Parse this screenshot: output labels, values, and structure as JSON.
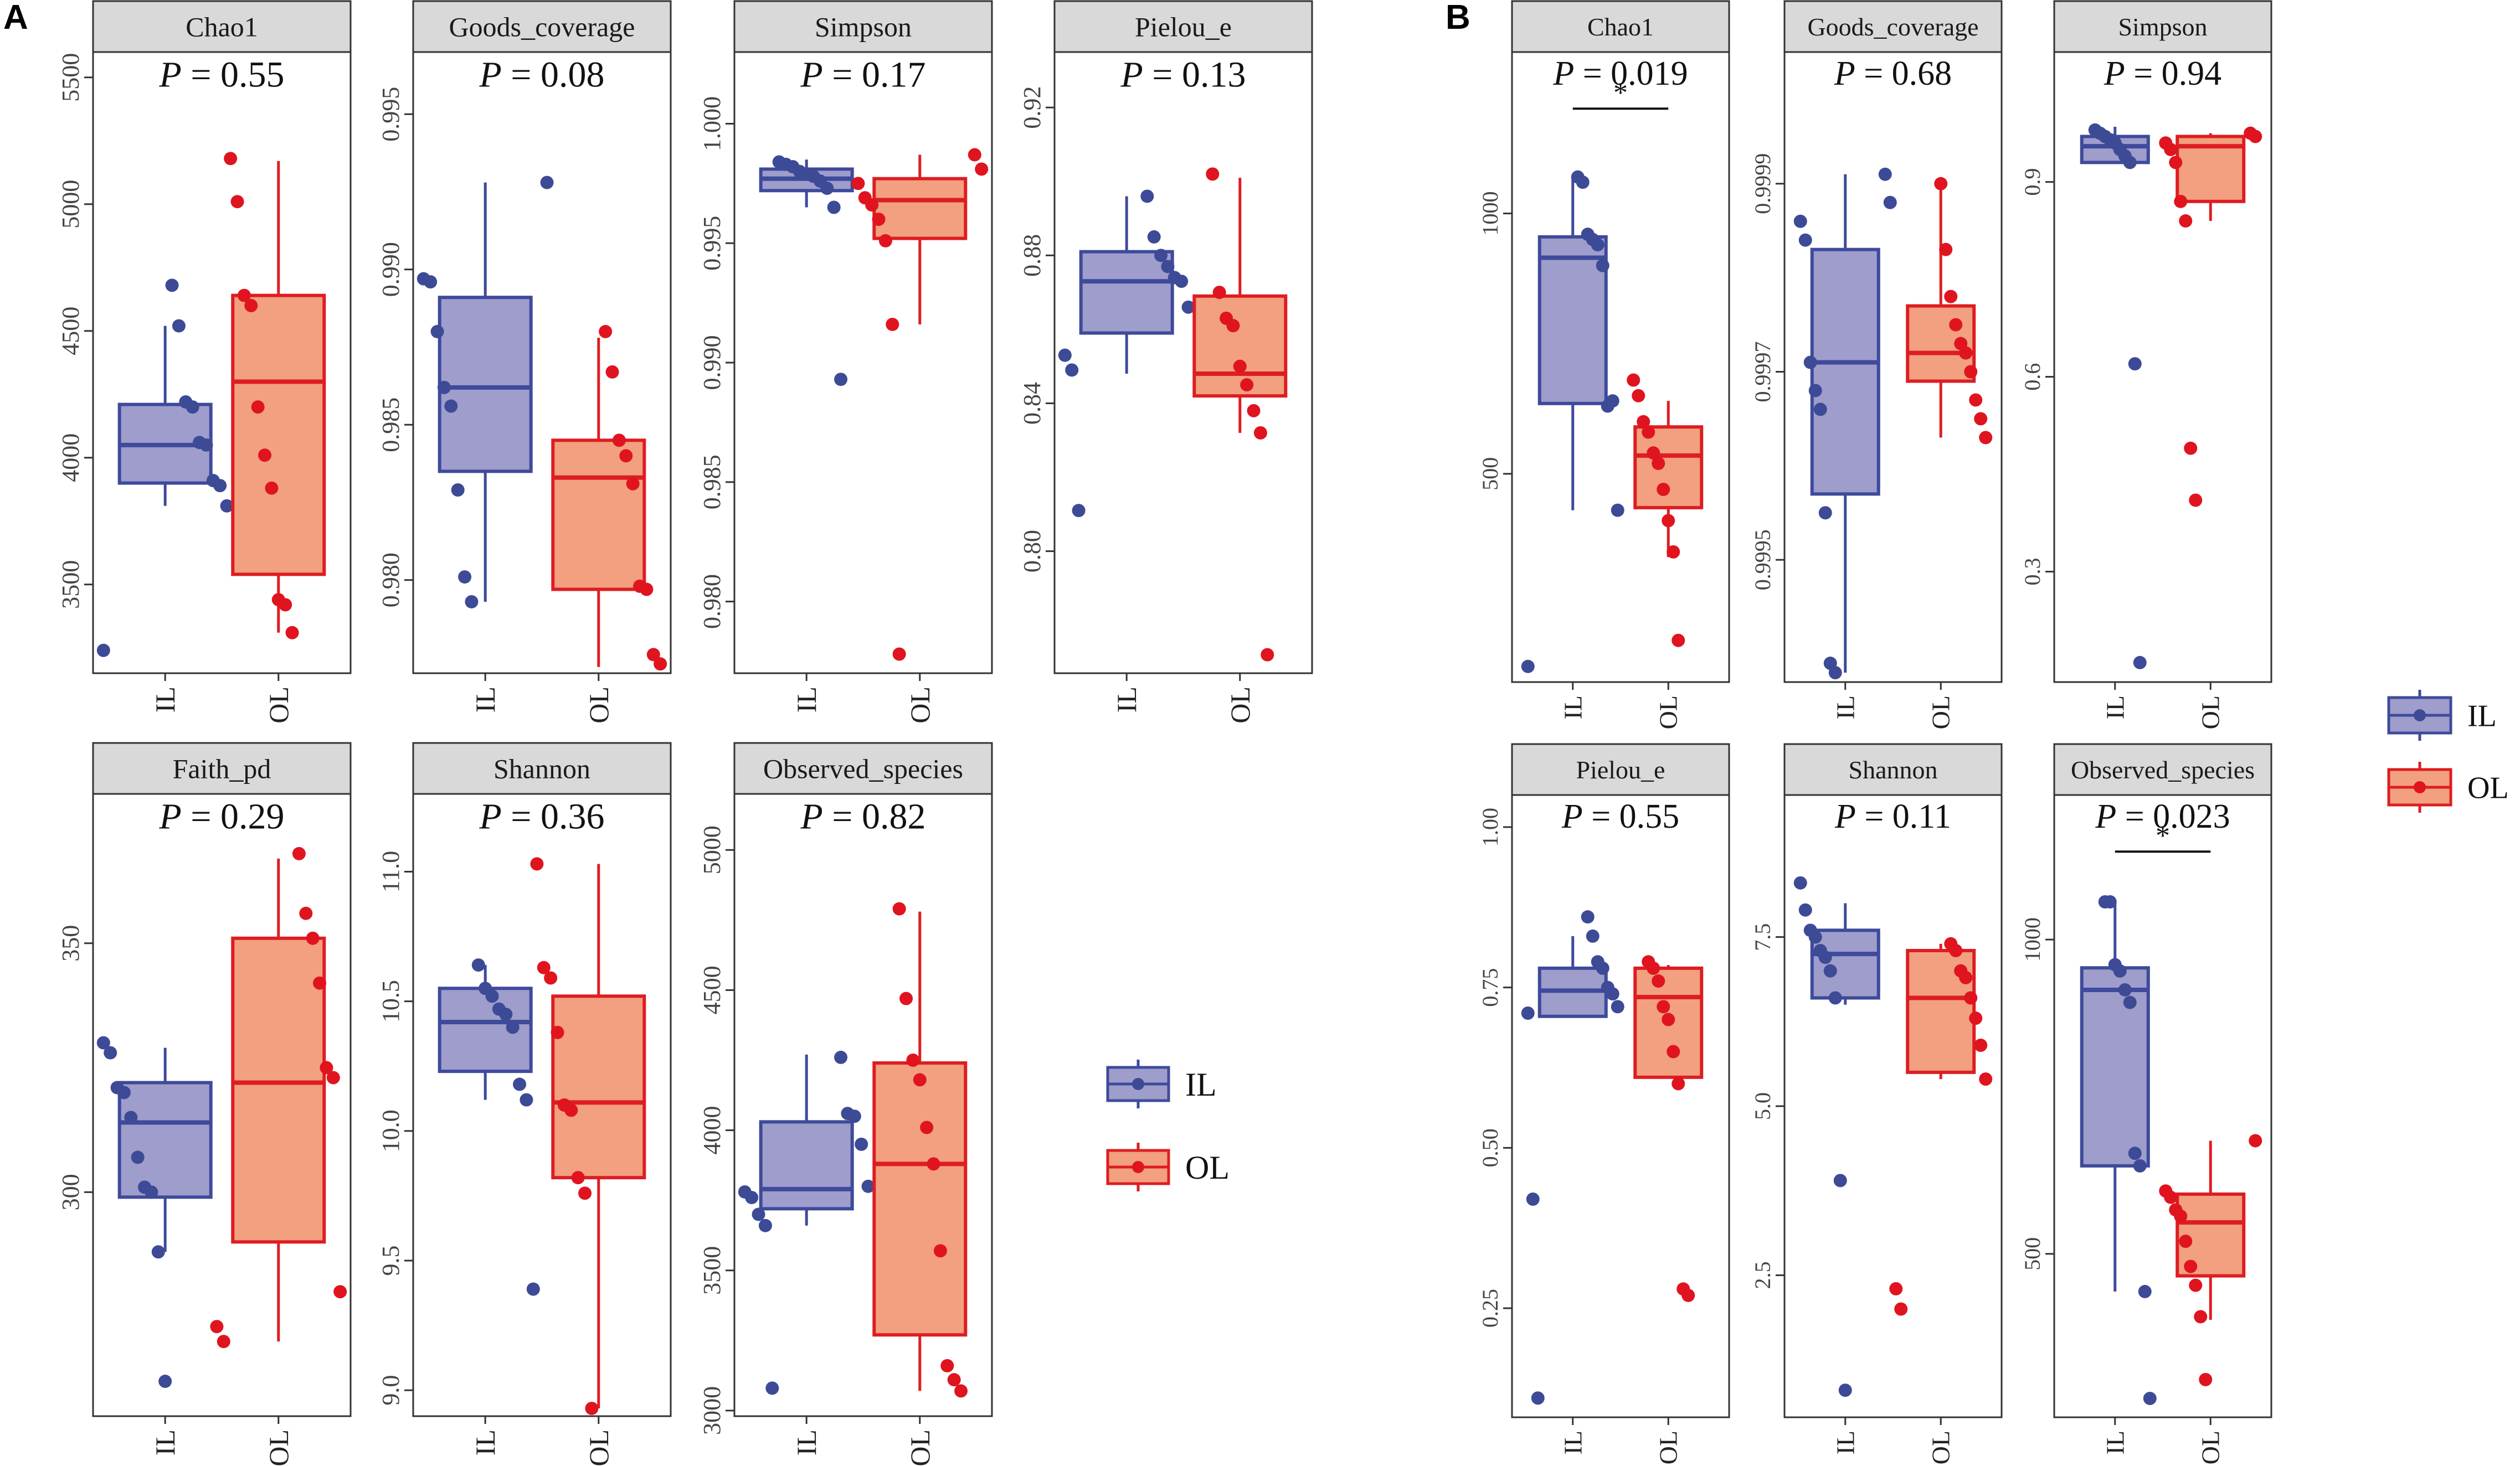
{
  "colors": {
    "il_line": "#3E4A9B",
    "il_fill": "#9E9DCB",
    "il_point": "#3D4A96",
    "ol_line": "#DE1D22",
    "ol_fill": "#F2A07F",
    "ol_point": "#E0141F",
    "strip_bg": "#D9D9D9",
    "frame": "#333333"
  },
  "legend": {
    "items": [
      {
        "label": "IL",
        "group": "IL"
      },
      {
        "label": "OL",
        "group": "OL"
      }
    ]
  },
  "chart_data": [
    {
      "panel": "A",
      "type": "box",
      "facets": [
        {
          "title": "Chao1",
          "p_value": "0.55",
          "yticks": [
            "3500",
            "4000",
            "4500",
            "5000",
            "5500"
          ],
          "ylim": [
            3150,
            5600
          ],
          "groups": [
            {
              "name": "IL",
              "q1": 3900,
              "median": 4050,
              "q3": 4210,
              "wlo": 3810,
              "whi": 4520,
              "points": [
                3240,
                3810,
                3890,
                3910,
                4050,
                4060,
                4200,
                4220,
                4520,
                4680
              ]
            },
            {
              "name": "OL",
              "q1": 3540,
              "median": 4300,
              "q3": 4640,
              "wlo": 3310,
              "whi": 5170,
              "points": [
                3310,
                3420,
                3440,
                3880,
                4010,
                4200,
                4600,
                4640,
                5010,
                5180
              ]
            }
          ]
        },
        {
          "title": "Goods_coverage",
          "p_value": "0.08",
          "yticks": [
            "0.980",
            "0.985",
            "0.990",
            "0.995"
          ],
          "ylim": [
            0.977,
            0.997
          ],
          "groups": [
            {
              "name": "IL",
              "q1": 0.9835,
              "median": 0.9862,
              "q3": 0.9891,
              "wlo": 0.9793,
              "whi": 0.9928,
              "points": [
                0.9793,
                0.9801,
                0.9829,
                0.9856,
                0.9862,
                0.988,
                0.9896,
                0.9897,
                0.9928
              ]
            },
            {
              "name": "OL",
              "q1": 0.9797,
              "median": 0.9833,
              "q3": 0.9845,
              "wlo": 0.9772,
              "whi": 0.9878,
              "points": [
                0.9773,
                0.9776,
                0.9797,
                0.9798,
                0.9831,
                0.984,
                0.9845,
                0.9867,
                0.988
              ]
            }
          ]
        },
        {
          "title": "Simpson",
          "p_value": "0.17",
          "yticks": [
            "0.980",
            "0.985",
            "0.990",
            "0.995",
            "1.000"
          ],
          "ylim": [
            0.977,
            1.003
          ],
          "groups": [
            {
              "name": "IL",
              "q1": 0.9972,
              "median": 0.9977,
              "q3": 0.9981,
              "wlo": 0.9965,
              "whi": 0.9985,
              "points": [
                0.9893,
                0.9965,
                0.9973,
                0.9976,
                0.9978,
                0.9979,
                0.998,
                0.9982,
                0.9983,
                0.9984
              ]
            },
            {
              "name": "OL",
              "q1": 0.9952,
              "median": 0.9968,
              "q3": 0.9977,
              "wlo": 0.9916,
              "whi": 0.9987,
              "points": [
                0.9778,
                0.9916,
                0.9951,
                0.996,
                0.9966,
                0.9969,
                0.9975,
                0.9981,
                0.9987
              ]
            }
          ]
        },
        {
          "title": "Pielou_e",
          "p_value": "0.13",
          "yticks": [
            "0.80",
            "0.84",
            "0.88",
            "0.92"
          ],
          "ylim": [
            0.767,
            0.935
          ],
          "groups": [
            {
              "name": "IL",
              "q1": 0.859,
              "median": 0.873,
              "q3": 0.881,
              "wlo": 0.848,
              "whi": 0.896,
              "points": [
                0.811,
                0.849,
                0.853,
                0.866,
                0.873,
                0.874,
                0.877,
                0.88,
                0.885,
                0.896
              ]
            },
            {
              "name": "OL",
              "q1": 0.842,
              "median": 0.848,
              "q3": 0.869,
              "wlo": 0.832,
              "whi": 0.901,
              "points": [
                0.772,
                0.832,
                0.838,
                0.845,
                0.85,
                0.861,
                0.863,
                0.87,
                0.902
              ]
            }
          ]
        },
        {
          "title": "Faith_pd",
          "p_value": "0.29",
          "yticks": [
            "300",
            "350"
          ],
          "ylim": [
            255,
            380
          ],
          "groups": [
            {
              "name": "IL",
              "q1": 299,
              "median": 314,
              "q3": 322,
              "wlo": 288,
              "whi": 329,
              "points": [
                262,
                288,
                300,
                301,
                307,
                315,
                320,
                321,
                328,
                330
              ]
            },
            {
              "name": "OL",
              "q1": 290,
              "median": 322,
              "q3": 351,
              "wlo": 270,
              "whi": 367,
              "points": [
                270,
                273,
                280,
                323,
                325,
                342,
                351,
                356,
                368
              ]
            }
          ]
        },
        {
          "title": "Shannon",
          "p_value": "0.36",
          "yticks": [
            "9.0",
            "9.5",
            "10.0",
            "10.5",
            "11.0"
          ],
          "ylim": [
            8.9,
            11.3
          ],
          "groups": [
            {
              "name": "IL",
              "q1": 10.23,
              "median": 10.42,
              "q3": 10.55,
              "wlo": 10.12,
              "whi": 10.64,
              "points": [
                9.39,
                10.12,
                10.18,
                10.4,
                10.45,
                10.47,
                10.52,
                10.55,
                10.64
              ]
            },
            {
              "name": "OL",
              "q1": 9.82,
              "median": 10.11,
              "q3": 10.52,
              "wlo": 8.93,
              "whi": 11.03,
              "points": [
                8.93,
                9.76,
                9.82,
                10.08,
                10.1,
                10.38,
                10.59,
                10.63,
                11.03
              ]
            }
          ]
        },
        {
          "title": "Observed_species",
          "p_value": "0.82",
          "yticks": [
            "3000",
            "3500",
            "4000",
            "4500",
            "5000"
          ],
          "ylim": [
            2980,
            5200
          ],
          "groups": [
            {
              "name": "IL",
              "q1": 3720,
              "median": 3790,
              "q3": 4030,
              "wlo": 3660,
              "whi": 4270,
              "points": [
                3080,
                3660,
                3700,
                3760,
                3780,
                3800,
                3950,
                4050,
                4060,
                4260
              ]
            },
            {
              "name": "OL",
              "q1": 3270,
              "median": 3880,
              "q3": 4240,
              "wlo": 3070,
              "whi": 4780,
              "points": [
                3070,
                3110,
                3160,
                3570,
                3880,
                4010,
                4180,
                4250,
                4470,
                4790
              ]
            }
          ]
        }
      ]
    },
    {
      "panel": "B",
      "type": "box",
      "facets": [
        {
          "title": "Chao1",
          "p_value": "0.019",
          "significance": "*",
          "yticks": [
            "500",
            "1000"
          ],
          "ylim": [
            100,
            1310
          ],
          "groups": [
            {
              "name": "IL",
              "q1": 635,
              "median": 915,
              "q3": 955,
              "wlo": 430,
              "whi": 1070,
              "points": [
                130,
                430,
                640,
                630,
                900,
                940,
                950,
                960,
                1060,
                1070
              ]
            },
            {
              "name": "OL",
              "q1": 435,
              "median": 535,
              "q3": 590,
              "wlo": 340,
              "whi": 640,
              "points": [
                180,
                350,
                410,
                470,
                520,
                540,
                580,
                600,
                650,
                680
              ]
            }
          ]
        },
        {
          "title": "Goods_coverage",
          "p_value": "0.68",
          "yticks": [
            "0.9995",
            "0.9997",
            "0.9999"
          ],
          "ylim": [
            0.99937,
            1.00004
          ],
          "groups": [
            {
              "name": "IL",
              "q1": 0.99957,
              "median": 0.99971,
              "q3": 0.99983,
              "wlo": 0.99938,
              "whi": 0.99991,
              "points": [
                0.99938,
                0.99939,
                0.99955,
                0.99966,
                0.99968,
                0.99971,
                0.99984,
                0.99986,
                0.99988,
                0.99991
              ]
            },
            {
              "name": "OL",
              "q1": 0.99969,
              "median": 0.99972,
              "q3": 0.99977,
              "wlo": 0.99963,
              "whi": 0.9999,
              "points": [
                0.99963,
                0.99965,
                0.99967,
                0.9997,
                0.99972,
                0.99973,
                0.99975,
                0.99978,
                0.99983,
                0.9999
              ]
            }
          ]
        },
        {
          "title": "Simpson",
          "p_value": "0.94",
          "yticks": [
            "0.3",
            "0.6",
            "0.9"
          ],
          "ylim": [
            0.13,
            1.1
          ],
          "groups": [
            {
              "name": "IL",
              "q1": 0.93,
              "median": 0.955,
              "q3": 0.97,
              "wlo": 0.93,
              "whi": 0.985,
              "points": [
                0.16,
                0.62,
                0.93,
                0.94,
                0.95,
                0.96,
                0.965,
                0.97,
                0.975,
                0.98
              ]
            },
            {
              "name": "OL",
              "q1": 0.87,
              "median": 0.955,
              "q3": 0.97,
              "wlo": 0.84,
              "whi": 0.975,
              "points": [
                0.41,
                0.49,
                0.84,
                0.87,
                0.93,
                0.95,
                0.96,
                0.97,
                0.975
              ]
            }
          ]
        },
        {
          "title": "Pielou_e",
          "p_value": "0.55",
          "yticks": [
            "0.25",
            "0.50",
            "0.75",
            "1.00"
          ],
          "ylim": [
            0.08,
            1.05
          ],
          "groups": [
            {
              "name": "IL",
              "q1": 0.705,
              "median": 0.745,
              "q3": 0.78,
              "wlo": 0.705,
              "whi": 0.83,
              "points": [
                0.11,
                0.42,
                0.71,
                0.72,
                0.74,
                0.75,
                0.78,
                0.79,
                0.83,
                0.86
              ]
            },
            {
              "name": "OL",
              "q1": 0.61,
              "median": 0.735,
              "q3": 0.78,
              "wlo": 0.61,
              "whi": 0.785,
              "points": [
                0.27,
                0.28,
                0.6,
                0.65,
                0.7,
                0.72,
                0.76,
                0.78,
                0.79
              ]
            }
          ]
        },
        {
          "title": "Shannon",
          "p_value": "0.11",
          "yticks": [
            "2.5",
            "5.0",
            "7.5"
          ],
          "ylim": [
            0.4,
            9.6
          ],
          "groups": [
            {
              "name": "IL",
              "q1": 6.6,
              "median": 7.25,
              "q3": 7.6,
              "wlo": 6.5,
              "whi": 8.0,
              "points": [
                0.8,
                3.9,
                6.6,
                7.0,
                7.2,
                7.3,
                7.5,
                7.6,
                7.9,
                8.3
              ]
            },
            {
              "name": "OL",
              "q1": 5.5,
              "median": 6.6,
              "q3": 7.3,
              "wlo": 5.4,
              "whi": 7.4,
              "points": [
                2.0,
                2.3,
                5.4,
                5.9,
                6.3,
                6.6,
                6.9,
                7.0,
                7.3,
                7.4
              ]
            }
          ]
        },
        {
          "title": "Observed_species",
          "p_value": "0.023",
          "significance": "*",
          "yticks": [
            "500",
            "1000"
          ],
          "ylim": [
            240,
            1230
          ],
          "groups": [
            {
              "name": "IL",
              "q1": 640,
              "median": 920,
              "q3": 955,
              "wlo": 440,
              "whi": 1060,
              "points": [
                270,
                440,
                640,
                660,
                900,
                920,
                950,
                960,
                1060,
                1060
              ]
            },
            {
              "name": "OL",
              "q1": 465,
              "median": 550,
              "q3": 595,
              "wlo": 395,
              "whi": 680,
              "points": [
                300,
                400,
                450,
                480,
                520,
                560,
                570,
                590,
                600,
                680
              ]
            }
          ]
        }
      ]
    }
  ]
}
